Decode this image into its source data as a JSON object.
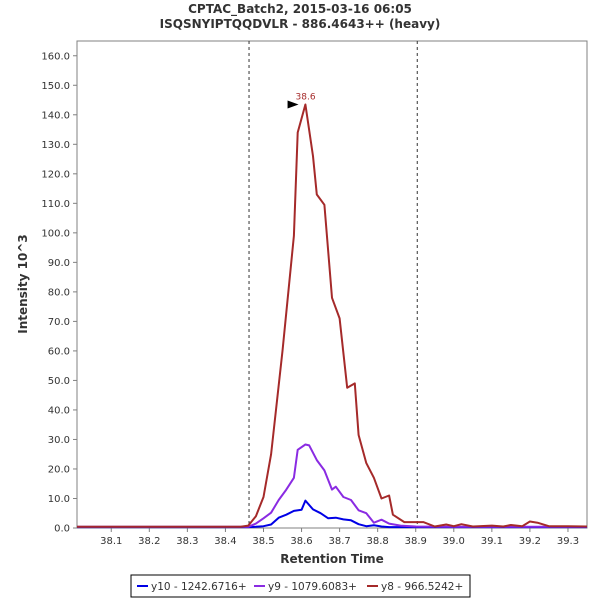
{
  "chart_data": {
    "type": "line",
    "title": "CPTAC_Batch2, 2015-03-16 06:05",
    "subtitle": "ISQSNYIPTQQDVLR - 886.4643++ (heavy)",
    "xlabel": "Retention Time",
    "ylabel": "Intensity 10^3",
    "xlim": [
      38.01,
      39.35
    ],
    "ylim": [
      0,
      165
    ],
    "x_ticks": [
      "38.1",
      "38.2",
      "38.3",
      "38.4",
      "38.5",
      "38.6",
      "38.7",
      "38.8",
      "38.9",
      "39.0",
      "39.1",
      "39.2",
      "39.3"
    ],
    "y_ticks": [
      "0.0",
      "10.0",
      "20.0",
      "30.0",
      "40.0",
      "50.0",
      "60.0",
      "70.0",
      "80.0",
      "90.0",
      "100.0",
      "110.0",
      "120.0",
      "130.0",
      "140.0",
      "150.0",
      "160.0"
    ],
    "grid": false,
    "legend_position": "bottom",
    "integration_boundaries": [
      38.462,
      38.904
    ],
    "peak_annotation": {
      "x": 38.6,
      "y": 143.5,
      "label": "38.6",
      "color": "#a52a2a"
    },
    "series": [
      {
        "name": "y10 - 1242.6716+",
        "color": "#0000e6",
        "points": [
          [
            38.01,
            0.3
          ],
          [
            38.1,
            0.3
          ],
          [
            38.2,
            0.3
          ],
          [
            38.3,
            0.3
          ],
          [
            38.4,
            0.3
          ],
          [
            38.44,
            0.3
          ],
          [
            38.46,
            0.3
          ],
          [
            38.48,
            0.4
          ],
          [
            38.5,
            0.6
          ],
          [
            38.52,
            1.2
          ],
          [
            38.54,
            3.5
          ],
          [
            38.56,
            4.5
          ],
          [
            38.58,
            5.8
          ],
          [
            38.6,
            6.2
          ],
          [
            38.61,
            9.3
          ],
          [
            38.63,
            6.3
          ],
          [
            38.65,
            5.0
          ],
          [
            38.67,
            3.3
          ],
          [
            38.69,
            3.5
          ],
          [
            38.71,
            2.9
          ],
          [
            38.73,
            2.6
          ],
          [
            38.75,
            1.3
          ],
          [
            38.77,
            0.6
          ],
          [
            38.79,
            0.9
          ],
          [
            38.81,
            0.5
          ],
          [
            38.83,
            0.3
          ],
          [
            38.9,
            0.3
          ],
          [
            39.0,
            0.3
          ],
          [
            39.1,
            0.3
          ],
          [
            39.2,
            0.3
          ],
          [
            39.35,
            0.3
          ]
        ]
      },
      {
        "name": "y9 - 1079.6083+",
        "color": "#8a2be2",
        "points": [
          [
            38.01,
            0.4
          ],
          [
            38.1,
            0.4
          ],
          [
            38.2,
            0.4
          ],
          [
            38.3,
            0.4
          ],
          [
            38.4,
            0.4
          ],
          [
            38.46,
            0.4
          ],
          [
            38.48,
            1.5
          ],
          [
            38.5,
            3.3
          ],
          [
            38.52,
            5.2
          ],
          [
            38.54,
            9.5
          ],
          [
            38.56,
            13.0
          ],
          [
            38.58,
            17.0
          ],
          [
            38.59,
            26.5
          ],
          [
            38.61,
            28.3
          ],
          [
            38.62,
            28.0
          ],
          [
            38.64,
            23.0
          ],
          [
            38.66,
            19.5
          ],
          [
            38.68,
            13.0
          ],
          [
            38.69,
            14.0
          ],
          [
            38.71,
            10.5
          ],
          [
            38.73,
            9.5
          ],
          [
            38.75,
            6.0
          ],
          [
            38.77,
            5.0
          ],
          [
            38.79,
            1.8
          ],
          [
            38.81,
            2.8
          ],
          [
            38.83,
            1.5
          ],
          [
            38.86,
            0.8
          ],
          [
            38.9,
            0.5
          ],
          [
            39.0,
            0.4
          ],
          [
            39.1,
            0.4
          ],
          [
            39.2,
            0.4
          ],
          [
            39.35,
            0.4
          ]
        ]
      },
      {
        "name": "y8 - 966.5242+",
        "color": "#a52a2a",
        "points": [
          [
            38.01,
            0.4
          ],
          [
            38.1,
            0.4
          ],
          [
            38.2,
            0.4
          ],
          [
            38.3,
            0.4
          ],
          [
            38.4,
            0.4
          ],
          [
            38.44,
            0.4
          ],
          [
            38.46,
            0.8
          ],
          [
            38.48,
            4.0
          ],
          [
            38.5,
            10.5
          ],
          [
            38.52,
            25.0
          ],
          [
            38.55,
            60.0
          ],
          [
            38.58,
            99.0
          ],
          [
            38.59,
            134.0
          ],
          [
            38.61,
            143.5
          ],
          [
            38.63,
            126.0
          ],
          [
            38.64,
            113.0
          ],
          [
            38.66,
            109.5
          ],
          [
            38.68,
            78.0
          ],
          [
            38.7,
            71.0
          ],
          [
            38.72,
            47.5
          ],
          [
            38.74,
            49.0
          ],
          [
            38.75,
            31.5
          ],
          [
            38.77,
            22.0
          ],
          [
            38.79,
            17.0
          ],
          [
            38.81,
            10.0
          ],
          [
            38.83,
            11.0
          ],
          [
            38.84,
            4.5
          ],
          [
            38.87,
            2.0
          ],
          [
            38.92,
            2.0
          ],
          [
            38.95,
            0.5
          ],
          [
            38.98,
            1.2
          ],
          [
            39.0,
            0.6
          ],
          [
            39.02,
            1.3
          ],
          [
            39.05,
            0.5
          ],
          [
            39.1,
            0.8
          ],
          [
            39.13,
            0.5
          ],
          [
            39.15,
            1.0
          ],
          [
            39.18,
            0.6
          ],
          [
            39.2,
            2.2
          ],
          [
            39.22,
            1.8
          ],
          [
            39.25,
            0.6
          ],
          [
            39.3,
            0.6
          ],
          [
            39.35,
            0.5
          ]
        ]
      }
    ]
  }
}
